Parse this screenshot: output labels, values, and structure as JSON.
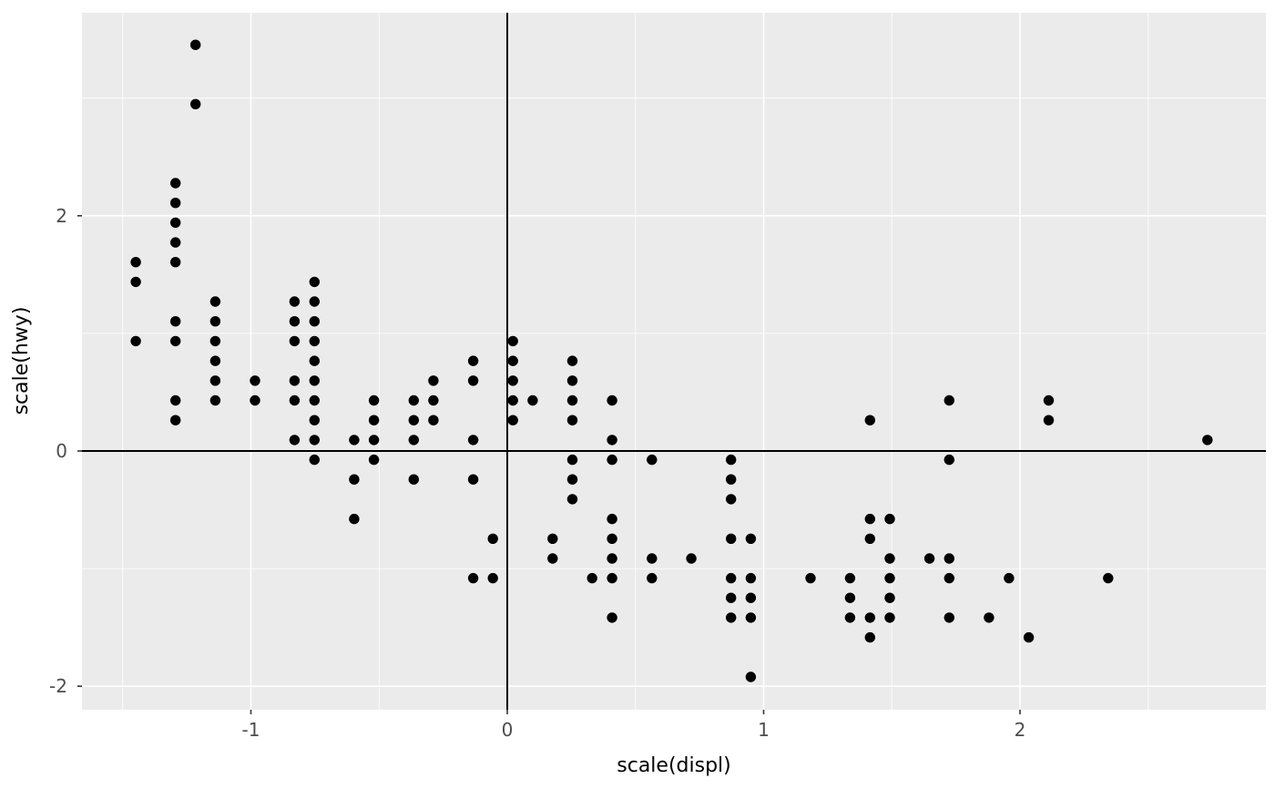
{
  "figure": {
    "title": "",
    "background_color": "#FFFFFF",
    "panel_background_color": "#EBEBEB",
    "gridline_color": "#FFFFFF",
    "point_color": "#000000",
    "reference_line_color": "#000000",
    "tick_label_color": "#4D4D4D",
    "axis_title_color": "#000000"
  },
  "chart_data": {
    "type": "scatter",
    "title": "",
    "xlabel": "scale(displ)",
    "ylabel": "scale(hwy)",
    "legend": null,
    "grid": true,
    "x_major_ticks": [
      -1,
      0,
      1,
      2
    ],
    "x_tick_labels": [
      "-1",
      "0",
      "1",
      "2"
    ],
    "x_minor_ticks": [
      -1.5,
      -0.5,
      0.5,
      1.5,
      2.5
    ],
    "y_major_ticks": [
      -2,
      0,
      2
    ],
    "y_tick_labels": [
      "-2",
      "0",
      "2"
    ],
    "y_minor_ticks": [
      -1,
      1,
      3
    ],
    "xlim": [
      -1.66,
      2.96
    ],
    "ylim": [
      -2.2,
      3.73
    ],
    "reference_lines": {
      "vline_x": 0,
      "hline_y": 0
    },
    "points": [
      [
        -1.449,
        1.606
      ],
      [
        -1.449,
        1.438
      ],
      [
        -1.449,
        0.934
      ],
      [
        -1.294,
        2.277
      ],
      [
        -1.294,
        2.109
      ],
      [
        -1.294,
        1.941
      ],
      [
        -1.294,
        1.773
      ],
      [
        -1.294,
        1.606
      ],
      [
        -1.294,
        1.102
      ],
      [
        -1.294,
        0.934
      ],
      [
        -1.294,
        0.43
      ],
      [
        -1.294,
        0.262
      ],
      [
        -1.216,
        3.453
      ],
      [
        -1.216,
        2.949
      ],
      [
        -1.139,
        1.27
      ],
      [
        -1.139,
        1.102
      ],
      [
        -1.139,
        0.934
      ],
      [
        -1.139,
        0.766
      ],
      [
        -1.139,
        0.598
      ],
      [
        -1.139,
        0.43
      ],
      [
        -0.984,
        0.598
      ],
      [
        -0.984,
        0.43
      ],
      [
        -0.83,
        1.27
      ],
      [
        -0.83,
        1.102
      ],
      [
        -0.83,
        0.934
      ],
      [
        -0.83,
        0.598
      ],
      [
        -0.83,
        0.43
      ],
      [
        -0.83,
        0.094
      ],
      [
        -0.752,
        1.438
      ],
      [
        -0.752,
        1.27
      ],
      [
        -0.752,
        1.102
      ],
      [
        -0.752,
        0.934
      ],
      [
        -0.752,
        0.766
      ],
      [
        -0.752,
        0.598
      ],
      [
        -0.752,
        0.43
      ],
      [
        -0.752,
        0.262
      ],
      [
        -0.752,
        0.094
      ],
      [
        -0.752,
        -0.074
      ],
      [
        -0.597,
        0.094
      ],
      [
        -0.597,
        -0.242
      ],
      [
        -0.597,
        -0.578
      ],
      [
        -0.52,
        0.43
      ],
      [
        -0.52,
        0.262
      ],
      [
        -0.52,
        0.094
      ],
      [
        -0.52,
        -0.074
      ],
      [
        -0.365,
        0.43
      ],
      [
        -0.365,
        0.262
      ],
      [
        -0.365,
        0.094
      ],
      [
        -0.365,
        -0.242
      ],
      [
        -0.288,
        0.598
      ],
      [
        -0.288,
        0.43
      ],
      [
        -0.288,
        0.262
      ],
      [
        -0.133,
        0.766
      ],
      [
        -0.133,
        0.598
      ],
      [
        -0.133,
        0.094
      ],
      [
        -0.133,
        -0.242
      ],
      [
        -0.133,
        -1.081
      ],
      [
        -0.056,
        -0.746
      ],
      [
        -0.056,
        -1.081
      ],
      [
        0.022,
        0.934
      ],
      [
        0.022,
        0.766
      ],
      [
        0.022,
        0.598
      ],
      [
        0.022,
        0.43
      ],
      [
        0.022,
        0.262
      ],
      [
        0.099,
        0.43
      ],
      [
        0.177,
        -0.746
      ],
      [
        0.177,
        -0.914
      ],
      [
        0.254,
        0.766
      ],
      [
        0.254,
        0.598
      ],
      [
        0.254,
        0.43
      ],
      [
        0.254,
        0.262
      ],
      [
        0.254,
        -0.074
      ],
      [
        0.254,
        -0.242
      ],
      [
        0.254,
        -0.41
      ],
      [
        0.331,
        -1.081
      ],
      [
        0.409,
        0.43
      ],
      [
        0.409,
        0.094
      ],
      [
        0.409,
        -0.074
      ],
      [
        0.409,
        -0.578
      ],
      [
        0.409,
        -0.746
      ],
      [
        0.409,
        -0.914
      ],
      [
        0.409,
        -1.081
      ],
      [
        0.409,
        -1.417
      ],
      [
        0.564,
        -0.074
      ],
      [
        0.564,
        -0.914
      ],
      [
        0.564,
        -1.081
      ],
      [
        0.718,
        -0.914
      ],
      [
        0.873,
        -0.074
      ],
      [
        0.873,
        -0.242
      ],
      [
        0.873,
        -0.41
      ],
      [
        0.873,
        -0.746
      ],
      [
        0.873,
        -1.081
      ],
      [
        0.873,
        -1.249
      ],
      [
        0.873,
        -1.417
      ],
      [
        0.95,
        -0.746
      ],
      [
        0.95,
        -1.081
      ],
      [
        0.95,
        -1.249
      ],
      [
        0.95,
        -1.417
      ],
      [
        0.95,
        -1.921
      ],
      [
        1.183,
        -1.081
      ],
      [
        1.337,
        -1.081
      ],
      [
        1.337,
        -1.249
      ],
      [
        1.337,
        -1.417
      ],
      [
        1.415,
        0.262
      ],
      [
        1.415,
        -0.578
      ],
      [
        1.415,
        -0.746
      ],
      [
        1.415,
        -1.417
      ],
      [
        1.415,
        -1.585
      ],
      [
        1.492,
        -0.578
      ],
      [
        1.492,
        -0.914
      ],
      [
        1.492,
        -1.081
      ],
      [
        1.492,
        -1.249
      ],
      [
        1.492,
        -1.417
      ],
      [
        1.647,
        -0.914
      ],
      [
        1.724,
        0.43
      ],
      [
        1.724,
        -0.074
      ],
      [
        1.724,
        -0.914
      ],
      [
        1.724,
        -1.081
      ],
      [
        1.724,
        -1.417
      ],
      [
        1.879,
        -1.417
      ],
      [
        1.957,
        -1.081
      ],
      [
        2.034,
        -1.585
      ],
      [
        2.112,
        0.43
      ],
      [
        2.112,
        0.262
      ],
      [
        2.344,
        -1.081
      ],
      [
        2.731,
        0.094
      ]
    ]
  }
}
